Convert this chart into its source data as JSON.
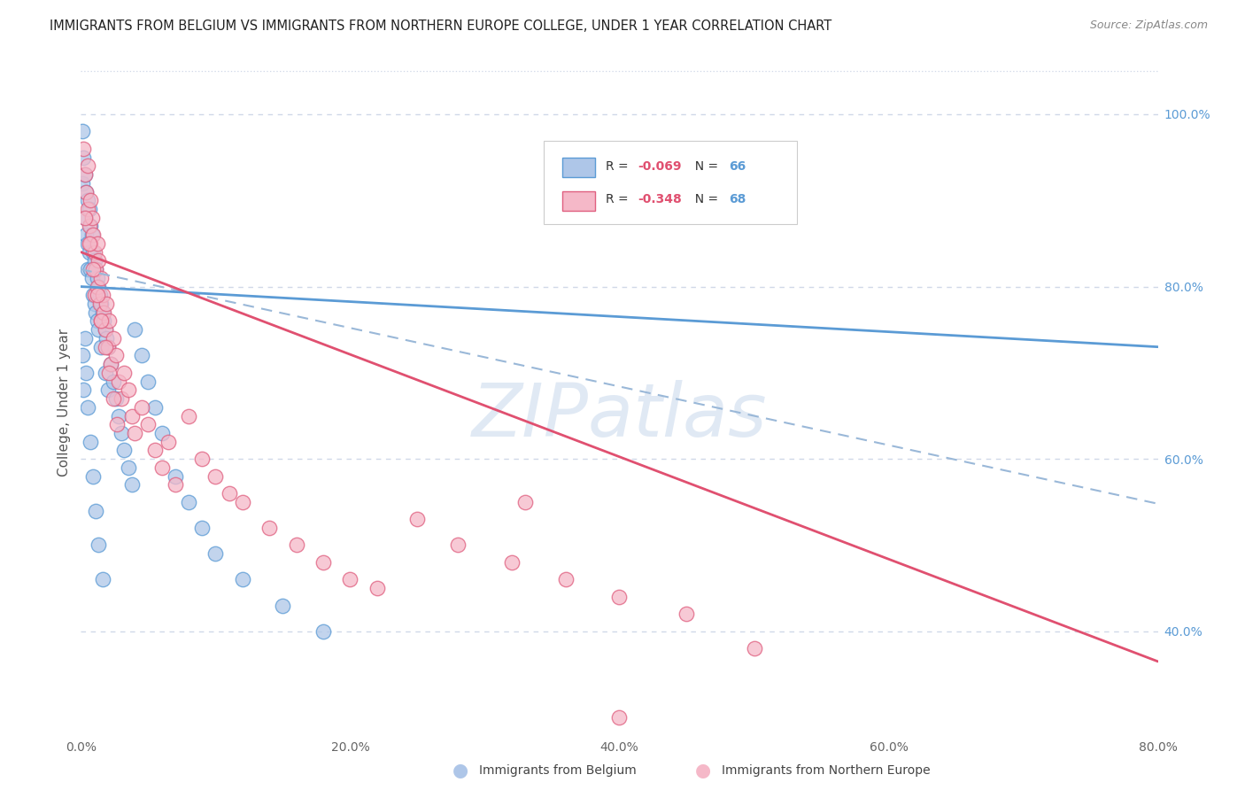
{
  "title": "IMMIGRANTS FROM BELGIUM VS IMMIGRANTS FROM NORTHERN EUROPE COLLEGE, UNDER 1 YEAR CORRELATION CHART",
  "source": "Source: ZipAtlas.com",
  "ylabel": "College, Under 1 year",
  "xlim": [
    0.0,
    0.8
  ],
  "ylim": [
    0.28,
    1.05
  ],
  "xticklabels": [
    "0.0%",
    "20.0%",
    "40.0%",
    "60.0%",
    "80.0%"
  ],
  "xtick_vals": [
    0.0,
    0.2,
    0.4,
    0.6,
    0.8
  ],
  "ytick_right_labels": [
    "100.0%",
    "80.0%",
    "60.0%",
    "40.0%"
  ],
  "ytick_right_values": [
    1.0,
    0.8,
    0.6,
    0.4
  ],
  "color_blue_fill": "#aec6e8",
  "color_blue_edge": "#5b9bd5",
  "color_pink_fill": "#f5b8c8",
  "color_pink_edge": "#e06080",
  "line_blue_color": "#5b9bd5",
  "line_pink_color": "#e05070",
  "line_dash_color": "#9ab8d8",
  "watermark": "ZIPatlas",
  "blue_line_x0": 0.0,
  "blue_line_x1": 0.8,
  "blue_line_y0": 0.8,
  "blue_line_y1": 0.73,
  "pink_line_x0": 0.0,
  "pink_line_x1": 0.8,
  "pink_line_y0": 0.84,
  "pink_line_y1": 0.365,
  "dash_line_x0": 0.0,
  "dash_line_x1": 0.8,
  "dash_line_y0": 0.82,
  "dash_line_y1": 0.548,
  "grid_color": "#d0d8e8",
  "background_color": "#ffffff",
  "title_fontsize": 10.5,
  "source_fontsize": 9,
  "axis_label_fontsize": 11,
  "tick_fontsize": 10,
  "legend_r1_val": "-0.069",
  "legend_n1_val": "66",
  "legend_r2_val": "-0.348",
  "legend_n2_val": "68",
  "blue_x": [
    0.001,
    0.001,
    0.002,
    0.003,
    0.003,
    0.004,
    0.004,
    0.005,
    0.005,
    0.005,
    0.006,
    0.006,
    0.007,
    0.007,
    0.008,
    0.008,
    0.009,
    0.009,
    0.01,
    0.01,
    0.011,
    0.011,
    0.012,
    0.012,
    0.013,
    0.013,
    0.014,
    0.015,
    0.015,
    0.016,
    0.017,
    0.018,
    0.018,
    0.019,
    0.02,
    0.02,
    0.022,
    0.024,
    0.026,
    0.028,
    0.03,
    0.032,
    0.035,
    0.038,
    0.04,
    0.045,
    0.05,
    0.055,
    0.06,
    0.07,
    0.08,
    0.09,
    0.1,
    0.12,
    0.15,
    0.18,
    0.001,
    0.002,
    0.003,
    0.004,
    0.005,
    0.007,
    0.009,
    0.011,
    0.013,
    0.016
  ],
  "blue_y": [
    0.98,
    0.92,
    0.95,
    0.93,
    0.88,
    0.91,
    0.86,
    0.9,
    0.85,
    0.82,
    0.89,
    0.84,
    0.87,
    0.82,
    0.86,
    0.81,
    0.84,
    0.79,
    0.83,
    0.78,
    0.82,
    0.77,
    0.81,
    0.76,
    0.8,
    0.75,
    0.79,
    0.78,
    0.73,
    0.77,
    0.76,
    0.75,
    0.7,
    0.74,
    0.73,
    0.68,
    0.71,
    0.69,
    0.67,
    0.65,
    0.63,
    0.61,
    0.59,
    0.57,
    0.75,
    0.72,
    0.69,
    0.66,
    0.63,
    0.58,
    0.55,
    0.52,
    0.49,
    0.46,
    0.43,
    0.4,
    0.72,
    0.68,
    0.74,
    0.7,
    0.66,
    0.62,
    0.58,
    0.54,
    0.5,
    0.46
  ],
  "pink_x": [
    0.002,
    0.003,
    0.004,
    0.005,
    0.005,
    0.006,
    0.007,
    0.007,
    0.008,
    0.009,
    0.01,
    0.01,
    0.011,
    0.012,
    0.012,
    0.013,
    0.014,
    0.015,
    0.015,
    0.016,
    0.017,
    0.018,
    0.019,
    0.02,
    0.021,
    0.022,
    0.024,
    0.026,
    0.028,
    0.03,
    0.032,
    0.035,
    0.038,
    0.04,
    0.045,
    0.05,
    0.055,
    0.06,
    0.065,
    0.07,
    0.08,
    0.09,
    0.1,
    0.11,
    0.12,
    0.14,
    0.16,
    0.18,
    0.2,
    0.22,
    0.25,
    0.28,
    0.32,
    0.36,
    0.4,
    0.45,
    0.5,
    0.003,
    0.006,
    0.009,
    0.012,
    0.015,
    0.018,
    0.021,
    0.024,
    0.027,
    0.33,
    0.4
  ],
  "pink_y": [
    0.96,
    0.93,
    0.91,
    0.89,
    0.94,
    0.87,
    0.9,
    0.85,
    0.88,
    0.86,
    0.84,
    0.79,
    0.82,
    0.85,
    0.8,
    0.83,
    0.78,
    0.81,
    0.76,
    0.79,
    0.77,
    0.75,
    0.78,
    0.73,
    0.76,
    0.71,
    0.74,
    0.72,
    0.69,
    0.67,
    0.7,
    0.68,
    0.65,
    0.63,
    0.66,
    0.64,
    0.61,
    0.59,
    0.62,
    0.57,
    0.65,
    0.6,
    0.58,
    0.56,
    0.55,
    0.52,
    0.5,
    0.48,
    0.46,
    0.45,
    0.53,
    0.5,
    0.48,
    0.46,
    0.44,
    0.42,
    0.38,
    0.88,
    0.85,
    0.82,
    0.79,
    0.76,
    0.73,
    0.7,
    0.67,
    0.64,
    0.55,
    0.3
  ]
}
